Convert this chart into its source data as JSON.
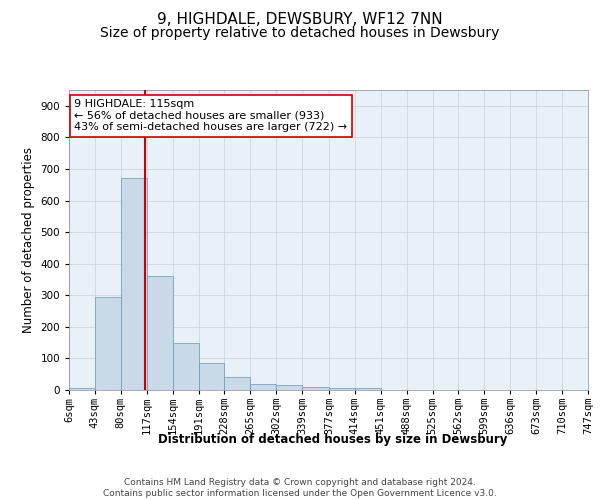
{
  "title": "9, HIGHDALE, DEWSBURY, WF12 7NN",
  "subtitle": "Size of property relative to detached houses in Dewsbury",
  "xlabel": "Distribution of detached houses by size in Dewsbury",
  "ylabel": "Number of detached properties",
  "footer_line1": "Contains HM Land Registry data © Crown copyright and database right 2024.",
  "footer_line2": "Contains public sector information licensed under the Open Government Licence v3.0.",
  "bin_edges": [
    6,
    43,
    80,
    117,
    154,
    191,
    228,
    265,
    302,
    339,
    377,
    414,
    451,
    488,
    525,
    562,
    599,
    636,
    673,
    710,
    747
  ],
  "bar_heights": [
    5,
    295,
    670,
    360,
    150,
    85,
    40,
    20,
    15,
    10,
    5,
    5,
    0,
    0,
    0,
    0,
    0,
    0,
    0,
    0
  ],
  "bar_color": "#c9d9e8",
  "bar_edge_color": "#6699bb",
  "vline_x": 115,
  "vline_color": "#cc0000",
  "annotation_line1": "9 HIGHDALE: 115sqm",
  "annotation_line2": "← 56% of detached houses are smaller (933)",
  "annotation_line3": "43% of semi-detached houses are larger (722) →",
  "ylim": [
    0,
    950
  ],
  "yticks": [
    0,
    100,
    200,
    300,
    400,
    500,
    600,
    700,
    800,
    900
  ],
  "background_color": "#ffffff",
  "grid_color": "#c8d0d8",
  "title_fontsize": 11,
  "subtitle_fontsize": 10,
  "axis_label_fontsize": 8.5,
  "tick_fontsize": 7.5,
  "annotation_fontsize": 8,
  "footer_fontsize": 6.5
}
